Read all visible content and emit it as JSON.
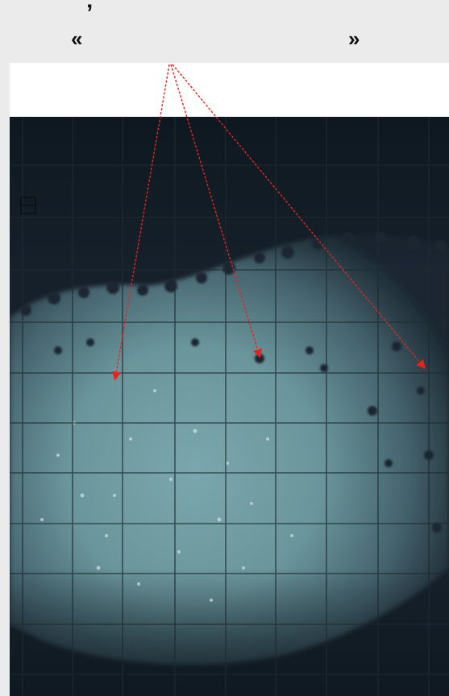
{
  "header": {
    "apostrophe": "’",
    "quote_open": "«",
    "quote_close": "»"
  },
  "figure": {
    "panel_label_icon": "corner-mark-icon",
    "arrow_color": "#e8231e",
    "photo_colors": {
      "background": "#16202a",
      "specimen": "#6e9aa0",
      "grid": "#1e2a30"
    },
    "arrows_count_shown": 3
  }
}
